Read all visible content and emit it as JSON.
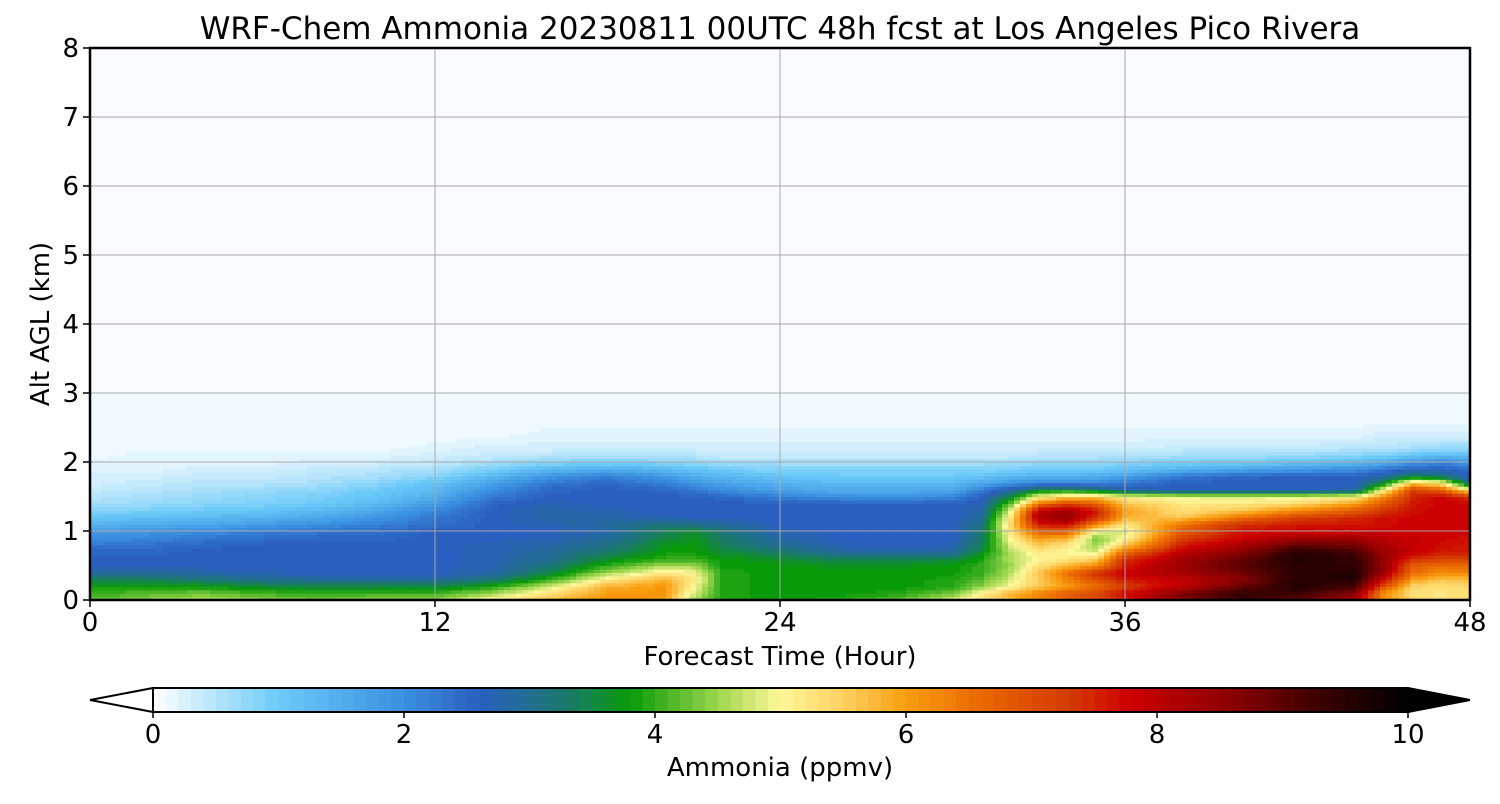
{
  "chart_data": {
    "type": "heatmap",
    "title": "WRF-Chem Ammonia  20230811 00UTC 48h fcst at Los Angeles Pico Rivera",
    "xlabel": "Forecast Time (Hour)",
    "ylabel": "Alt AGL (km)",
    "xlim": [
      0,
      48
    ],
    "ylim": [
      0,
      8
    ],
    "xticks": [
      0,
      12,
      24,
      36,
      48
    ],
    "yticks": [
      0,
      1,
      2,
      3,
      4,
      5,
      6,
      7,
      8
    ],
    "grid": true,
    "colorbar": {
      "label": "Ammonia  (ppmv)",
      "min": 0,
      "max": 10,
      "ticks": [
        0,
        2,
        4,
        6,
        8,
        10
      ],
      "extend": "both",
      "stops": [
        {
          "v": 0,
          "c": "#ffffff"
        },
        {
          "v": 1,
          "c": "#6ccaf8"
        },
        {
          "v": 2,
          "c": "#3a8fe0"
        },
        {
          "v": 2.6,
          "c": "#2a5fc0"
        },
        {
          "v": 3.3,
          "c": "#1a7a6a"
        },
        {
          "v": 3.8,
          "c": "#089a08"
        },
        {
          "v": 4.5,
          "c": "#9cd64c"
        },
        {
          "v": 5,
          "c": "#fff89a"
        },
        {
          "v": 5.5,
          "c": "#fdd060"
        },
        {
          "v": 6,
          "c": "#f99e10"
        },
        {
          "v": 6.6,
          "c": "#ea6800"
        },
        {
          "v": 7.3,
          "c": "#d43a00"
        },
        {
          "v": 7.8,
          "c": "#cc0000"
        },
        {
          "v": 8.6,
          "c": "#8a0000"
        },
        {
          "v": 9.3,
          "c": "#3a0000"
        },
        {
          "v": 10,
          "c": "#000000"
        }
      ]
    },
    "field": {
      "description_free": true,
      "x": [
        0,
        2,
        4,
        6,
        8,
        10,
        12,
        14,
        16,
        18,
        20,
        21,
        22,
        24,
        26,
        28,
        30,
        31,
        32,
        33,
        34,
        35,
        36,
        38,
        40,
        42,
        44,
        45,
        46,
        47,
        48
      ],
      "y": [
        0,
        0.1,
        0.2,
        0.3,
        0.4,
        0.5,
        0.6,
        0.7,
        0.8,
        0.9,
        1.0,
        1.1,
        1.2,
        1.3,
        1.4,
        1.5,
        1.6,
        1.7,
        1.8,
        1.9,
        2.0,
        2.1,
        2.2,
        2.4,
        2.6,
        3.0,
        8.0
      ],
      "values": [
        [
          4.2,
          4.4,
          4.6,
          4.4,
          4.3,
          4.4,
          4.4,
          5.2,
          5.7,
          6.2,
          6.0,
          4.5,
          3.9,
          3.8,
          3.9,
          4.2,
          4.8,
          5.3,
          5.7,
          6.2,
          6.6,
          6.9,
          7.4,
          8.6,
          9.3,
          9.0,
          8.2,
          6.2,
          5.5,
          5.3,
          5.5
        ],
        [
          4.0,
          4.2,
          4.3,
          4.1,
          4.0,
          4.1,
          4.1,
          4.5,
          5.3,
          6.0,
          6.1,
          4.8,
          3.9,
          3.8,
          3.8,
          3.9,
          4.3,
          5.1,
          5.8,
          6.3,
          6.8,
          7.2,
          7.8,
          8.8,
          9.4,
          9.3,
          8.6,
          6.1,
          5.3,
          5.2,
          5.3
        ],
        [
          3.8,
          3.8,
          3.8,
          3.6,
          3.5,
          3.5,
          3.5,
          3.9,
          4.8,
          5.8,
          6.1,
          5.0,
          3.9,
          3.8,
          3.8,
          3.8,
          3.9,
          4.4,
          5.0,
          5.6,
          6.0,
          6.5,
          7.2,
          8.0,
          8.9,
          9.6,
          9.2,
          7.0,
          5.4,
          5.3,
          5.4
        ],
        [
          3.4,
          3.4,
          3.2,
          3.0,
          2.9,
          2.9,
          2.9,
          3.2,
          4.0,
          5.2,
          5.8,
          5.2,
          3.9,
          3.8,
          3.8,
          3.8,
          3.9,
          4.2,
          4.8,
          5.5,
          6.3,
          7.0,
          7.6,
          7.9,
          8.6,
          9.5,
          9.6,
          7.8,
          6.0,
          5.6,
          5.7
        ],
        [
          2.9,
          2.9,
          2.8,
          2.7,
          2.6,
          2.6,
          2.6,
          2.8,
          3.5,
          4.5,
          5.2,
          5.0,
          3.9,
          3.8,
          3.8,
          3.8,
          3.8,
          4.0,
          4.6,
          5.6,
          6.5,
          7.4,
          7.9,
          8.3,
          8.8,
          9.5,
          9.6,
          8.4,
          6.6,
          6.2,
          6.3
        ],
        [
          2.6,
          2.6,
          2.6,
          2.6,
          2.6,
          2.6,
          2.6,
          2.7,
          3.2,
          4.0,
          4.6,
          4.5,
          3.8,
          3.8,
          3.7,
          3.7,
          3.8,
          4.0,
          4.5,
          5.3,
          5.8,
          6.2,
          7.6,
          8.4,
          9.0,
          9.5,
          9.4,
          8.5,
          6.8,
          6.5,
          6.6
        ],
        [
          2.6,
          2.6,
          2.6,
          2.6,
          2.6,
          2.6,
          2.6,
          2.7,
          3.0,
          3.6,
          4.0,
          4.0,
          3.8,
          3.6,
          3.4,
          3.4,
          3.5,
          3.9,
          4.6,
          5.0,
          5.2,
          5.5,
          7.4,
          8.3,
          8.9,
          9.6,
          9.4,
          8.5,
          7.4,
          7.2,
          7.2
        ],
        [
          2.5,
          2.5,
          2.6,
          2.6,
          2.6,
          2.6,
          2.6,
          2.7,
          2.9,
          3.3,
          3.8,
          3.8,
          3.6,
          3.3,
          2.9,
          2.8,
          2.9,
          3.6,
          4.6,
          5.2,
          5.0,
          4.8,
          6.6,
          8.0,
          8.6,
          9.5,
          9.2,
          8.4,
          7.9,
          7.6,
          7.6
        ],
        [
          2.3,
          2.4,
          2.5,
          2.6,
          2.6,
          2.6,
          2.6,
          2.7,
          2.8,
          3.1,
          3.7,
          3.8,
          3.4,
          3.0,
          2.7,
          2.6,
          2.7,
          3.4,
          4.8,
          5.6,
          5.2,
          4.5,
          5.6,
          7.6,
          8.2,
          9.0,
          8.8,
          8.2,
          7.9,
          7.7,
          7.6
        ],
        [
          2.0,
          2.1,
          2.3,
          2.4,
          2.5,
          2.5,
          2.6,
          2.6,
          2.7,
          2.9,
          3.5,
          3.7,
          3.3,
          2.8,
          2.6,
          2.6,
          2.6,
          3.3,
          5.0,
          6.0,
          5.8,
          4.3,
          5.0,
          7.2,
          7.8,
          8.3,
          8.4,
          8.0,
          7.9,
          7.8,
          7.7
        ],
        [
          1.8,
          1.9,
          2.0,
          2.2,
          2.3,
          2.4,
          2.6,
          2.6,
          2.6,
          2.8,
          3.4,
          3.6,
          3.2,
          2.7,
          2.6,
          2.6,
          2.6,
          3.2,
          5.2,
          6.8,
          6.8,
          5.0,
          4.8,
          6.8,
          7.6,
          7.8,
          7.8,
          7.8,
          7.8,
          7.8,
          7.8
        ],
        [
          1.4,
          1.5,
          1.6,
          1.8,
          2.0,
          2.2,
          2.4,
          2.6,
          2.7,
          2.9,
          3.2,
          3.1,
          2.9,
          2.6,
          2.6,
          2.6,
          2.6,
          3.1,
          5.4,
          7.6,
          7.8,
          6.2,
          5.2,
          6.5,
          7.4,
          7.6,
          7.6,
          7.7,
          7.8,
          7.8,
          7.8
        ],
        [
          1.1,
          1.2,
          1.3,
          1.4,
          1.6,
          1.9,
          2.3,
          2.6,
          2.8,
          2.8,
          2.7,
          2.6,
          2.6,
          2.6,
          2.6,
          2.6,
          2.6,
          2.9,
          5.2,
          8.2,
          8.5,
          7.4,
          5.8,
          5.6,
          6.5,
          7.2,
          7.5,
          7.7,
          7.8,
          7.8,
          7.8
        ],
        [
          0.8,
          0.9,
          1.0,
          1.1,
          1.3,
          1.6,
          2.1,
          2.6,
          2.8,
          2.7,
          2.6,
          2.6,
          2.6,
          2.6,
          2.6,
          2.6,
          2.6,
          2.8,
          4.8,
          8.0,
          8.3,
          7.6,
          6.0,
          5.3,
          5.6,
          6.2,
          6.8,
          7.3,
          7.7,
          7.8,
          7.8
        ],
        [
          0.6,
          0.7,
          0.8,
          0.9,
          1.0,
          1.3,
          1.8,
          2.5,
          2.7,
          2.6,
          2.6,
          2.6,
          2.6,
          2.6,
          2.6,
          2.6,
          2.6,
          2.7,
          4.2,
          6.5,
          7.2,
          6.8,
          5.6,
          5.2,
          5.2,
          5.4,
          6.0,
          6.9,
          7.6,
          7.8,
          7.8
        ],
        [
          0.5,
          0.6,
          0.7,
          0.8,
          0.9,
          1.1,
          1.5,
          2.3,
          2.6,
          2.6,
          2.6,
          2.6,
          2.5,
          2.2,
          2.0,
          1.9,
          2.1,
          2.6,
          3.5,
          5.0,
          5.5,
          5.6,
          5.1,
          4.9,
          4.8,
          4.9,
          5.1,
          6.3,
          7.5,
          7.8,
          7.4
        ],
        [
          0.4,
          0.5,
          0.6,
          0.7,
          0.8,
          1.0,
          1.3,
          2.0,
          2.5,
          2.6,
          2.5,
          2.3,
          2.0,
          1.7,
          1.5,
          1.5,
          1.6,
          2.2,
          2.8,
          3.5,
          3.6,
          3.3,
          2.8,
          2.6,
          2.6,
          2.6,
          2.7,
          5.0,
          7.2,
          6.8,
          5.2
        ],
        [
          0.3,
          0.4,
          0.5,
          0.5,
          0.6,
          0.8,
          1.1,
          1.7,
          2.3,
          2.5,
          2.2,
          1.9,
          1.7,
          1.4,
          1.3,
          1.3,
          1.3,
          1.6,
          1.9,
          2.1,
          2.1,
          2.1,
          2.3,
          2.6,
          2.6,
          2.6,
          2.6,
          3.6,
          5.6,
          5.2,
          3.0
        ],
        [
          0.3,
          0.3,
          0.4,
          0.4,
          0.5,
          0.6,
          0.8,
          1.3,
          1.9,
          2.2,
          1.8,
          1.5,
          1.3,
          1.1,
          1.0,
          1.0,
          1.0,
          1.1,
          1.3,
          1.4,
          1.4,
          1.5,
          1.7,
          2.3,
          2.5,
          2.6,
          2.6,
          2.8,
          3.4,
          3.2,
          2.6
        ],
        [
          0.2,
          0.2,
          0.3,
          0.3,
          0.4,
          0.5,
          0.6,
          0.9,
          1.3,
          1.5,
          1.3,
          1.1,
          1.0,
          0.8,
          0.8,
          0.8,
          0.8,
          0.8,
          0.9,
          1.0,
          1.0,
          1.0,
          1.1,
          1.4,
          1.6,
          1.8,
          2.0,
          2.3,
          2.6,
          2.6,
          2.4
        ],
        [
          0.2,
          0.2,
          0.2,
          0.2,
          0.3,
          0.3,
          0.4,
          0.6,
          0.8,
          0.9,
          0.8,
          0.7,
          0.6,
          0.6,
          0.6,
          0.6,
          0.6,
          0.6,
          0.6,
          0.7,
          0.7,
          0.7,
          0.8,
          0.9,
          1.0,
          1.1,
          1.3,
          1.5,
          1.9,
          2.1,
          1.8
        ],
        [
          0.1,
          0.2,
          0.2,
          0.2,
          0.2,
          0.2,
          0.3,
          0.4,
          0.5,
          0.5,
          0.5,
          0.5,
          0.4,
          0.4,
          0.4,
          0.4,
          0.4,
          0.4,
          0.4,
          0.5,
          0.5,
          0.5,
          0.5,
          0.6,
          0.6,
          0.7,
          0.8,
          0.9,
          1.1,
          1.3,
          1.2
        ],
        [
          0.1,
          0.1,
          0.1,
          0.1,
          0.1,
          0.1,
          0.2,
          0.3,
          0.3,
          0.3,
          0.3,
          0.3,
          0.3,
          0.3,
          0.3,
          0.3,
          0.3,
          0.3,
          0.3,
          0.3,
          0.3,
          0.3,
          0.3,
          0.4,
          0.4,
          0.4,
          0.5,
          0.5,
          0.6,
          0.7,
          0.7
        ],
        [
          0.1,
          0.1,
          0.1,
          0.1,
          0.1,
          0.1,
          0.1,
          0.1,
          0.2,
          0.2,
          0.2,
          0.2,
          0.2,
          0.2,
          0.2,
          0.2,
          0.2,
          0.2,
          0.2,
          0.2,
          0.2,
          0.2,
          0.2,
          0.2,
          0.2,
          0.2,
          0.2,
          0.3,
          0.3,
          0.3,
          0.3
        ],
        [
          0.1,
          0.1,
          0.1,
          0.1,
          0.1,
          0.1,
          0.1,
          0.1,
          0.1,
          0.1,
          0.1,
          0.1,
          0.1,
          0.1,
          0.1,
          0.1,
          0.1,
          0.1,
          0.1,
          0.1,
          0.1,
          0.1,
          0.1,
          0.1,
          0.1,
          0.1,
          0.1,
          0.1,
          0.1,
          0.1,
          0.1
        ],
        [
          0.05,
          0.05,
          0.05,
          0.05,
          0.05,
          0.05,
          0.05,
          0.05,
          0.05,
          0.05,
          0.05,
          0.05,
          0.05,
          0.05,
          0.05,
          0.05,
          0.05,
          0.05,
          0.05,
          0.05,
          0.05,
          0.05,
          0.05,
          0.05,
          0.05,
          0.05,
          0.05,
          0.05,
          0.05,
          0.05,
          0.05
        ],
        [
          0.05,
          0.05,
          0.05,
          0.05,
          0.05,
          0.05,
          0.05,
          0.05,
          0.05,
          0.05,
          0.05,
          0.05,
          0.05,
          0.05,
          0.05,
          0.05,
          0.05,
          0.05,
          0.05,
          0.05,
          0.05,
          0.05,
          0.05,
          0.05,
          0.05,
          0.05,
          0.05,
          0.05,
          0.05,
          0.05,
          0.05
        ]
      ]
    }
  }
}
